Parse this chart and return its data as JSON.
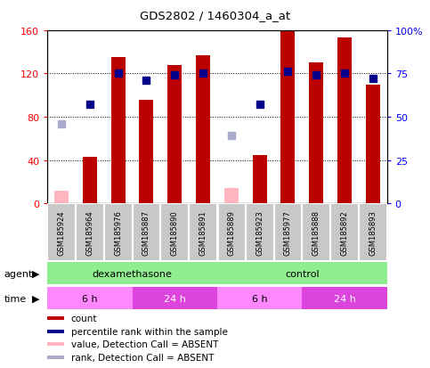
{
  "title": "GDS2802 / 1460304_a_at",
  "samples": [
    "GSM185924",
    "GSM185964",
    "GSM185976",
    "GSM185887",
    "GSM185890",
    "GSM185891",
    "GSM185889",
    "GSM185923",
    "GSM185977",
    "GSM185888",
    "GSM185892",
    "GSM185893"
  ],
  "bar_values": [
    null,
    43,
    135,
    96,
    128,
    137,
    null,
    45,
    160,
    130,
    153,
    110
  ],
  "absent_bar_values": [
    12,
    null,
    null,
    null,
    null,
    null,
    14,
    null,
    null,
    null,
    null,
    null
  ],
  "percentile_ranks_pct": [
    null,
    57,
    75,
    71,
    74,
    75,
    null,
    57,
    76,
    74,
    75,
    72
  ],
  "absent_ranks_pct": [
    46,
    null,
    null,
    null,
    null,
    null,
    39,
    null,
    null,
    null,
    null,
    null
  ],
  "bar_color": "#BB0000",
  "absent_bar_color": "#FFB6C1",
  "rank_color": "#00008B",
  "absent_rank_color": "#AAAACC",
  "ylim_left": [
    0,
    160
  ],
  "ylim_right": [
    0,
    100
  ],
  "yticks_left": [
    0,
    40,
    80,
    120,
    160
  ],
  "yticks_right": [
    0,
    25,
    50,
    75,
    100
  ],
  "agent_groups": [
    {
      "label": "dexamethasone",
      "start": 0,
      "end": 6,
      "color": "#90EE90"
    },
    {
      "label": "control",
      "start": 6,
      "end": 12,
      "color": "#90EE90"
    }
  ],
  "time_groups": [
    {
      "label": "6 h",
      "start": 0,
      "end": 3,
      "color": "#FF88FF"
    },
    {
      "label": "24 h",
      "start": 3,
      "end": 6,
      "color": "#DD44DD"
    },
    {
      "label": "6 h",
      "start": 6,
      "end": 9,
      "color": "#FF88FF"
    },
    {
      "label": "24 h",
      "start": 9,
      "end": 12,
      "color": "#DD44DD"
    }
  ],
  "legend_items": [
    {
      "label": "count",
      "color": "#BB0000"
    },
    {
      "label": "percentile rank within the sample",
      "color": "#00008B"
    },
    {
      "label": "value, Detection Call = ABSENT",
      "color": "#FFB6C1"
    },
    {
      "label": "rank, Detection Call = ABSENT",
      "color": "#AAAACC"
    }
  ],
  "bar_width": 0.5,
  "rank_marker_size": 6,
  "figsize": [
    4.83,
    4.14
  ],
  "dpi": 100
}
